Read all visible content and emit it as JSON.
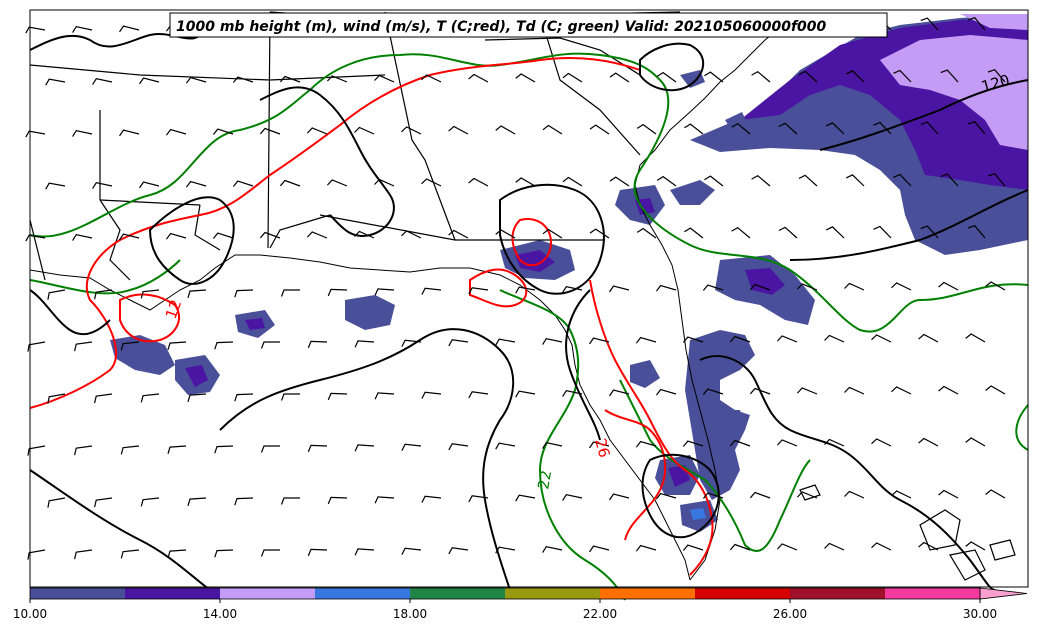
{
  "title": "1000 mb height (m), wind (m/s), T (C;red), Td (C; green) Valid: 202105060000f000",
  "colors": {
    "height_contour": "#000000",
    "temperature_contour": "#ff0000",
    "dewpoint_contour": "#008000",
    "state_border": "#000000"
  },
  "colorbar": {
    "min": 10,
    "max": 30,
    "extend": "max",
    "tick_labels": [
      "10.00",
      "14.00",
      "18.00",
      "22.00",
      "26.00",
      "30.00"
    ],
    "bins": [
      {
        "from": 10,
        "to": 12,
        "color": "#4a4f99"
      },
      {
        "from": 12,
        "to": 14,
        "color": "#4a15a3"
      },
      {
        "from": 14,
        "to": 16,
        "color": "#c59cf5"
      },
      {
        "from": 16,
        "to": 18,
        "color": "#3876e0"
      },
      {
        "from": 18,
        "to": 20,
        "color": "#218547"
      },
      {
        "from": 20,
        "to": 22,
        "color": "#9a9a10"
      },
      {
        "from": 22,
        "to": 24,
        "color": "#ff7000"
      },
      {
        "from": 24,
        "to": 26,
        "color": "#d50000"
      },
      {
        "from": 26,
        "to": 28,
        "color": "#a1102a"
      },
      {
        "from": 28,
        "to": 30,
        "color": "#f23aa0"
      }
    ],
    "extend_color": "#f9a0d0"
  },
  "contour_labels": [
    {
      "text": "120",
      "series": "height"
    },
    {
      "text": "26",
      "series": "temperature"
    },
    {
      "text": "22",
      "series": "dewpoint"
    },
    {
      "text": "12",
      "series": "temperature"
    }
  ]
}
